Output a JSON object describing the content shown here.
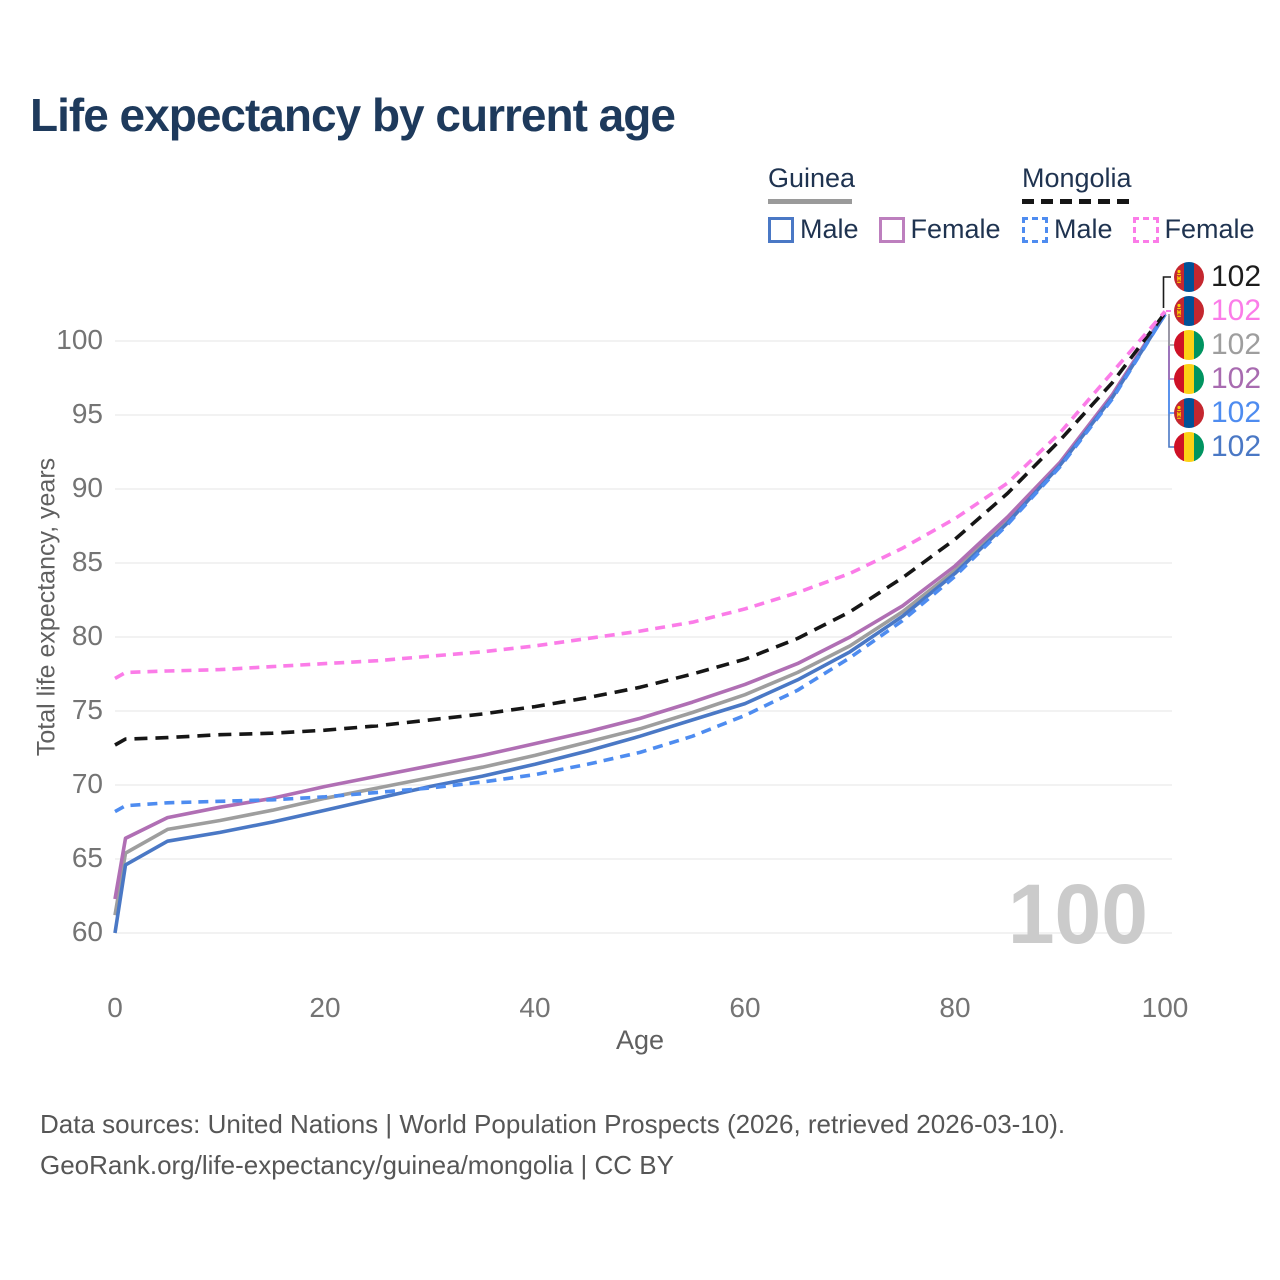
{
  "title": "Life expectancy by current age",
  "legend": {
    "groups": [
      {
        "label": "Guinea",
        "line_style": "solid",
        "line_color": "#9a9a9a",
        "items": [
          {
            "label": "Male",
            "color": "#4a78c5",
            "style": "solid"
          },
          {
            "label": "Female",
            "color": "#bd7fbe",
            "style": "solid"
          }
        ]
      },
      {
        "label": "Mongolia",
        "line_style": "dashed",
        "line_color": "#161616",
        "items": [
          {
            "label": "Male",
            "color": "#4e8cf0",
            "style": "dashed"
          },
          {
            "label": "Female",
            "color": "#fb7ce8",
            "style": "dashed"
          }
        ]
      }
    ]
  },
  "chart_data": {
    "type": "line",
    "title": "Life expectancy by current age",
    "xlabel": "Age",
    "ylabel": "Total life expectancy, years",
    "xlim": [
      0,
      100
    ],
    "ylim": [
      60,
      100
    ],
    "x_ticks": [
      0,
      20,
      40,
      60,
      80,
      100
    ],
    "y_ticks": [
      60,
      65,
      70,
      75,
      80,
      85,
      90,
      95,
      100
    ],
    "grid": "horizontal",
    "legend_position": "top-right",
    "watermark": "100",
    "x": [
      0,
      1,
      5,
      10,
      15,
      20,
      25,
      30,
      35,
      40,
      45,
      50,
      55,
      60,
      65,
      70,
      75,
      80,
      85,
      90,
      95,
      100
    ],
    "series": [
      {
        "name": "Guinea All",
        "country": "Guinea",
        "style": "solid",
        "color": "#9e9e9e",
        "values": [
          61.2,
          65.4,
          67.0,
          67.6,
          68.3,
          69.1,
          69.8,
          70.5,
          71.2,
          72.0,
          72.9,
          73.8,
          74.9,
          76.1,
          77.6,
          79.4,
          81.7,
          84.5,
          87.9,
          91.7,
          96.3,
          101.8
        ]
      },
      {
        "name": "Guinea Female",
        "country": "Guinea",
        "style": "solid",
        "color": "#b06fb4",
        "values": [
          62.3,
          66.4,
          67.8,
          68.5,
          69.1,
          69.9,
          70.6,
          71.3,
          72.0,
          72.8,
          73.6,
          74.5,
          75.6,
          76.8,
          78.2,
          80.0,
          82.1,
          84.8,
          88.1,
          91.8,
          96.4,
          101.9
        ]
      },
      {
        "name": "Guinea Male",
        "country": "Guinea",
        "style": "solid",
        "color": "#4a78c5",
        "values": [
          60.0,
          64.6,
          66.2,
          66.8,
          67.5,
          68.3,
          69.1,
          69.9,
          70.6,
          71.4,
          72.3,
          73.3,
          74.4,
          75.5,
          77.1,
          79.0,
          81.4,
          84.3,
          87.7,
          91.6,
          96.2,
          101.8
        ]
      },
      {
        "name": "Mongolia Male",
        "country": "Mongolia",
        "style": "dashed",
        "color": "#4e8cf0",
        "values": [
          68.2,
          68.6,
          68.8,
          68.9,
          69.0,
          69.2,
          69.5,
          69.8,
          70.2,
          70.7,
          71.4,
          72.2,
          73.3,
          74.7,
          76.4,
          78.6,
          81.1,
          84.1,
          87.6,
          91.5,
          96.1,
          101.8
        ]
      },
      {
        "name": "Mongolia All",
        "country": "Mongolia",
        "style": "dashed",
        "color": "#161616",
        "values": [
          72.7,
          73.1,
          73.2,
          73.4,
          73.5,
          73.7,
          74.0,
          74.4,
          74.8,
          75.3,
          75.9,
          76.6,
          77.5,
          78.5,
          79.9,
          81.7,
          84.0,
          86.6,
          89.7,
          93.3,
          97.2,
          101.9
        ]
      },
      {
        "name": "Mongolia Female",
        "country": "Mongolia",
        "style": "dashed",
        "color": "#fb7ce8",
        "values": [
          77.2,
          77.6,
          77.7,
          77.8,
          78.0,
          78.2,
          78.4,
          78.7,
          79.0,
          79.4,
          79.9,
          80.4,
          81.0,
          81.9,
          83.0,
          84.3,
          86.0,
          88.0,
          90.4,
          93.8,
          97.9,
          102.0
        ]
      }
    ],
    "end_labels": [
      {
        "value": "102",
        "flag": "mongolia",
        "color": "#1c1c1c",
        "series": "Mongolia All"
      },
      {
        "value": "102",
        "flag": "mongolia",
        "color": "#fb7ce8",
        "series": "Mongolia Female"
      },
      {
        "value": "102",
        "flag": "guinea",
        "color": "#9e9e9e",
        "series": "Guinea All"
      },
      {
        "value": "102",
        "flag": "guinea",
        "color": "#a86bb0",
        "series": "Guinea Female"
      },
      {
        "value": "102",
        "flag": "mongolia",
        "color": "#4e8cf0",
        "series": "Mongolia Male"
      },
      {
        "value": "102",
        "flag": "guinea",
        "color": "#4a78c5",
        "series": "Guinea Male"
      }
    ]
  },
  "footer": {
    "line1": "Data sources: United Nations | World Population Prospects (2026, retrieved 2026-03-10).",
    "line2": "GeoRank.org/life-expectancy/guinea/mongolia | CC BY"
  }
}
